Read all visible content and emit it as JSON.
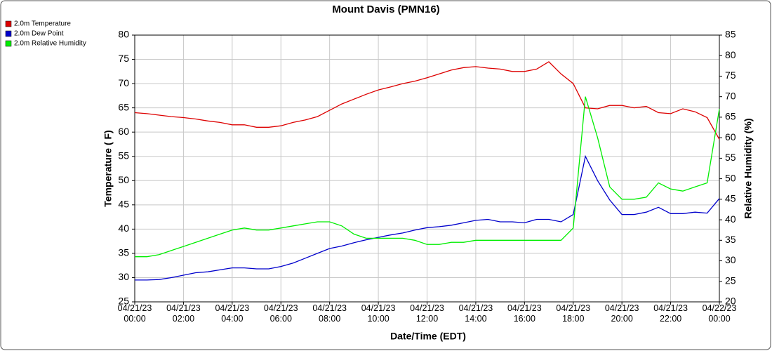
{
  "chart_data": {
    "type": "line",
    "title": "Mount Davis (PMN16)",
    "xlabel": "Date/Time (EDT)",
    "ylabel": "Temperature ( F)",
    "y2label": "Relative Humidity (%)",
    "x": [
      "04/21/23 00:00",
      "04/21/23 00:30",
      "04/21/23 01:00",
      "04/21/23 01:30",
      "04/21/23 02:00",
      "04/21/23 02:30",
      "04/21/23 03:00",
      "04/21/23 03:30",
      "04/21/23 04:00",
      "04/21/23 04:30",
      "04/21/23 05:00",
      "04/21/23 05:30",
      "04/21/23 06:00",
      "04/21/23 06:30",
      "04/21/23 07:00",
      "04/21/23 07:30",
      "04/21/23 08:00",
      "04/21/23 08:30",
      "04/21/23 09:00",
      "04/21/23 09:30",
      "04/21/23 10:00",
      "04/21/23 10:30",
      "04/21/23 11:00",
      "04/21/23 11:30",
      "04/21/23 12:00",
      "04/21/23 12:30",
      "04/21/23 13:00",
      "04/21/23 13:30",
      "04/21/23 14:00",
      "04/21/23 14:30",
      "04/21/23 15:00",
      "04/21/23 15:30",
      "04/21/23 16:00",
      "04/21/23 16:30",
      "04/21/23 17:00",
      "04/21/23 17:30",
      "04/21/23 18:00",
      "04/21/23 18:30",
      "04/21/23 19:00",
      "04/21/23 19:30",
      "04/21/23 20:00",
      "04/21/23 20:30",
      "04/21/23 21:00",
      "04/21/23 21:30",
      "04/21/23 22:00",
      "04/21/23 22:30",
      "04/21/23 23:00",
      "04/21/23 23:30",
      "04/22/23 00:00"
    ],
    "xticks": [
      "04/21/23 00:00",
      "04/21/23 02:00",
      "04/21/23 04:00",
      "04/21/23 06:00",
      "04/21/23 08:00",
      "04/21/23 10:00",
      "04/21/23 12:00",
      "04/21/23 14:00",
      "04/21/23 16:00",
      "04/21/23 18:00",
      "04/21/23 20:00",
      "04/21/23 22:00",
      "04/22/23 00:00"
    ],
    "ylim": [
      25,
      80
    ],
    "yticks": [
      25,
      30,
      35,
      40,
      45,
      50,
      55,
      60,
      65,
      70,
      75,
      80
    ],
    "y2lim": [
      20,
      85
    ],
    "y2ticks": [
      20,
      25,
      30,
      35,
      40,
      45,
      50,
      55,
      60,
      65,
      70,
      75,
      80,
      85
    ],
    "grid": true,
    "legend": "top-left",
    "series": [
      {
        "name": "2.0m Temperature",
        "color": "#dd0000",
        "values": [
          64,
          63.8,
          63.5,
          63.2,
          63,
          62.7,
          62.3,
          62,
          61.5,
          61.5,
          61,
          61,
          61.3,
          62,
          62.5,
          63.2,
          64.5,
          65.8,
          66.8,
          67.8,
          68.7,
          69.3,
          70,
          70.5,
          71.2,
          72,
          72.8,
          73.3,
          73.5,
          73.2,
          73,
          72.5,
          72.5,
          73,
          74.5,
          72,
          70,
          65,
          64.8,
          65.5,
          65.5,
          65,
          65.3,
          64,
          63.8,
          64.8,
          64.2,
          63,
          58.5
        ]
      },
      {
        "name": "2.0m Dew Point",
        "color": "#0000cc",
        "values": [
          29.5,
          29.5,
          29.6,
          30,
          30.5,
          31,
          31.2,
          31.6,
          32,
          32,
          31.8,
          31.8,
          32.3,
          33,
          34,
          35,
          36,
          36.5,
          37.2,
          37.8,
          38.3,
          38.8,
          39.2,
          39.8,
          40.3,
          40.5,
          40.8,
          41.3,
          41.8,
          42,
          41.5,
          41.5,
          41.3,
          42,
          42,
          41.5,
          43,
          55,
          50,
          46,
          43,
          43,
          43.5,
          44.5,
          43.2,
          43.2,
          43.5,
          43.3,
          46.3
        ]
      },
      {
        "name": "2.0m Relative Humidity",
        "color": "#00ee00",
        "axis": "y2",
        "values": [
          31,
          31,
          31.5,
          32.5,
          33.5,
          34.5,
          35.5,
          36.5,
          37.5,
          38,
          37.5,
          37.5,
          38,
          38.5,
          39,
          39.5,
          39.5,
          38.5,
          36.5,
          35.5,
          35.5,
          35.5,
          35.5,
          35,
          34,
          34,
          34.5,
          34.5,
          35,
          35,
          35,
          35,
          35,
          35,
          35,
          35,
          38,
          70,
          60,
          48,
          45,
          45,
          45.5,
          49,
          47.5,
          47,
          48,
          49,
          67
        ]
      }
    ]
  }
}
